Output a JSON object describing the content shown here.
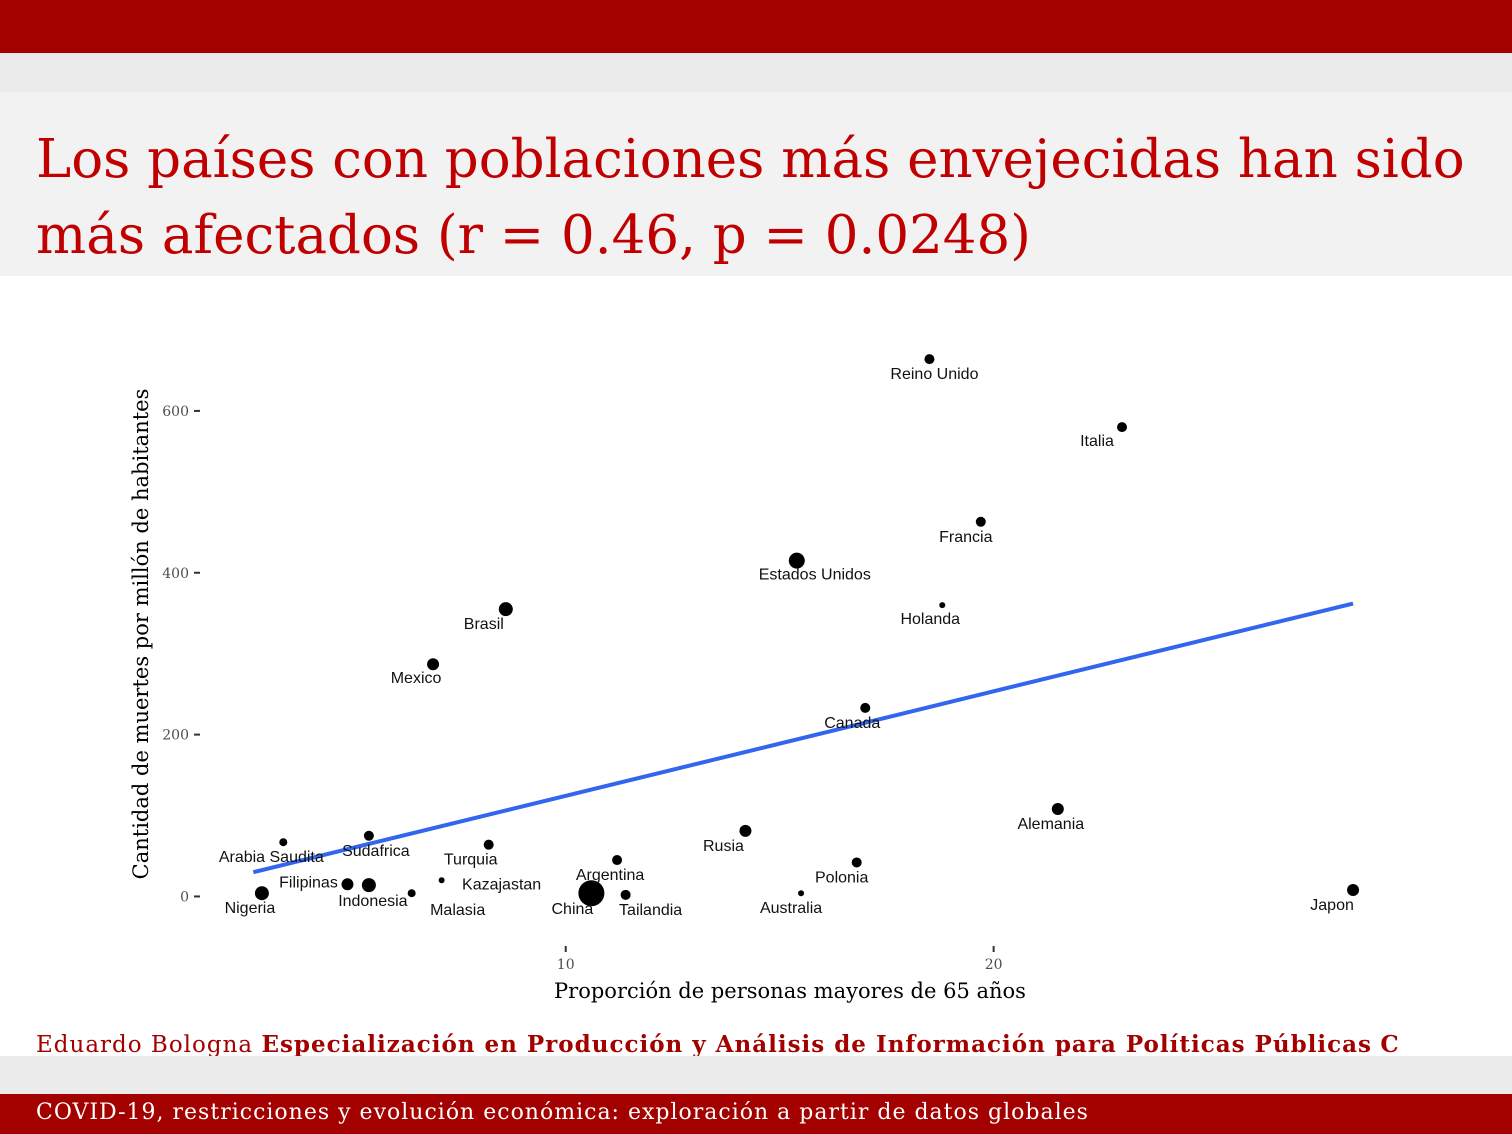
{
  "slide": {
    "title_line1": "Los países con poblaciones más envejecidas han sido",
    "title_line2": "más afectados (r = 0.46, p = 0.0248)",
    "footer_author": "Eduardo Bologna",
    "footer_program": "Especialización en Producción y Análisis de Información para Políticas Públicas",
    "footer_program_cut": "C",
    "footer_title": "COVID-19, restricciones y evolución económica: exploración a partir de datos globales"
  },
  "colors": {
    "accent": "#a30000",
    "title": "#c00000",
    "trend_line": "#3366ee",
    "points": "#000000"
  },
  "chart_data": {
    "type": "scatter",
    "xlabel": "Proporción de personas mayores de 65 años",
    "ylabel": "Cantidad de muertes por millón de habitantes",
    "xlim": [
      1.5,
      31.6
    ],
    "ylim": [
      -60,
      700
    ],
    "xticks": [
      10,
      20
    ],
    "yticks": [
      0,
      200,
      400,
      600
    ],
    "grid": false,
    "trend": {
      "x1": 2.7,
      "y1": 30,
      "x2": 28.4,
      "y2": 362
    },
    "points": [
      {
        "label": "Reino Unido",
        "x": 18.5,
        "y": 664,
        "size": 5
      },
      {
        "label": "Italia",
        "x": 23.0,
        "y": 580,
        "size": 5
      },
      {
        "label": "Francia",
        "x": 19.7,
        "y": 463,
        "size": 5
      },
      {
        "label": "Estados Unidos",
        "x": 15.4,
        "y": 415,
        "size": 8
      },
      {
        "label": "Holanda",
        "x": 18.8,
        "y": 360,
        "size": 3
      },
      {
        "label": "Brasil",
        "x": 8.6,
        "y": 355,
        "size": 7
      },
      {
        "label": "Mexico",
        "x": 6.9,
        "y": 287,
        "size": 6
      },
      {
        "label": "Canada",
        "x": 17.0,
        "y": 233,
        "size": 5
      },
      {
        "label": "Alemania",
        "x": 21.5,
        "y": 108,
        "size": 6
      },
      {
        "label": "Rusia",
        "x": 14.2,
        "y": 81,
        "size": 6
      },
      {
        "label": "Sudafrica",
        "x": 5.4,
        "y": 75,
        "size": 5
      },
      {
        "label": "Arabia Saudita",
        "x": 3.4,
        "y": 67,
        "size": 4
      },
      {
        "label": "Turquia",
        "x": 8.2,
        "y": 64,
        "size": 5
      },
      {
        "label": "Argentina",
        "x": 11.2,
        "y": 45,
        "size": 5
      },
      {
        "label": "Polonia",
        "x": 16.8,
        "y": 42,
        "size": 5
      },
      {
        "label": "Kazajastan",
        "x": 7.1,
        "y": 20,
        "size": 3
      },
      {
        "label": "Filipinas",
        "x": 4.9,
        "y": 15,
        "size": 6
      },
      {
        "label": "Indonesia",
        "x": 5.4,
        "y": 14,
        "size": 7
      },
      {
        "label": "Nigeria",
        "x": 2.9,
        "y": 4,
        "size": 7
      },
      {
        "label": "Malasia",
        "x": 6.4,
        "y": 4,
        "size": 4
      },
      {
        "label": "China",
        "x": 10.6,
        "y": 4,
        "size": 13
      },
      {
        "label": "Tailandia",
        "x": 11.4,
        "y": 2,
        "size": 5
      },
      {
        "label": "Australia",
        "x": 15.5,
        "y": 4,
        "size": 3
      },
      {
        "label": "Japon",
        "x": 28.4,
        "y": 8,
        "size": 6
      }
    ]
  }
}
